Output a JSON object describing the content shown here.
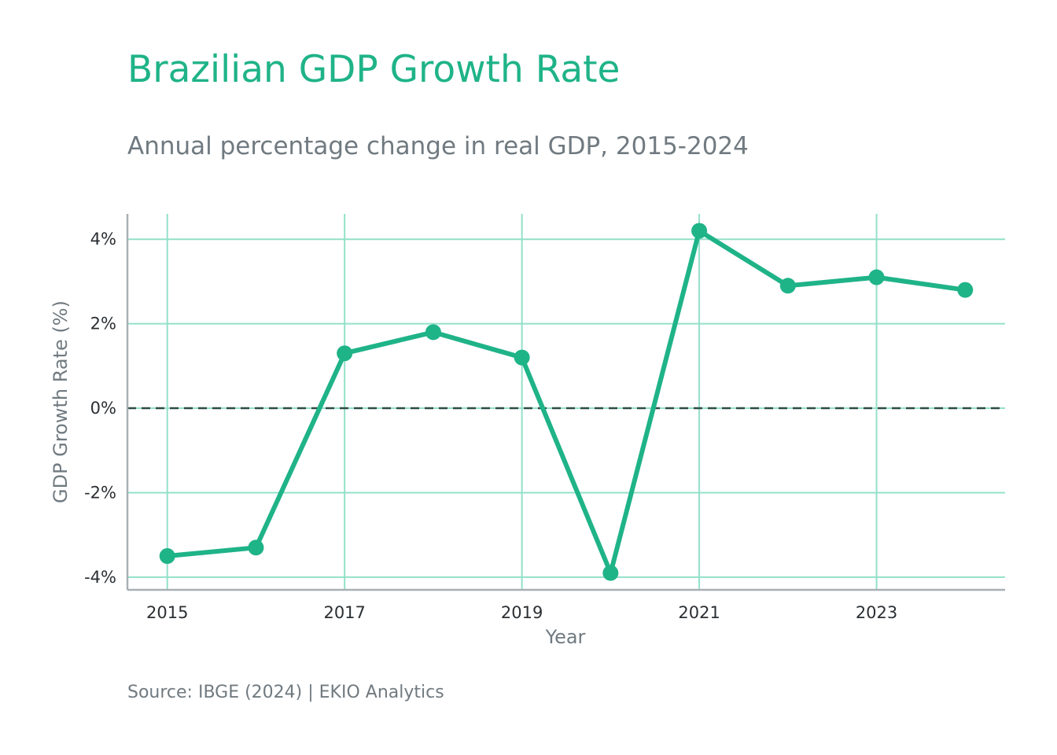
{
  "chart_data": {
    "type": "line",
    "title": "Brazilian GDP Growth Rate",
    "subtitle": "Annual percentage change in real GDP, 2015-2024",
    "caption": "Source: IBGE (2024) | EKIO Analytics",
    "xlabel": "Year",
    "ylabel": "GDP Growth Rate (%)",
    "x": [
      2015,
      2016,
      2017,
      2018,
      2019,
      2020,
      2021,
      2022,
      2023,
      2024
    ],
    "values": [
      -3.5,
      -3.3,
      1.3,
      1.8,
      1.2,
      -3.9,
      4.2,
      2.9,
      3.1,
      2.8
    ],
    "xlim": [
      2014.55,
      2024.45
    ],
    "ylim": [
      -4.3,
      4.6
    ],
    "xticks": [
      2015,
      2017,
      2019,
      2021,
      2023
    ],
    "xtick_labels": [
      "2015",
      "2017",
      "2019",
      "2021",
      "2023"
    ],
    "yticks": [
      -4,
      -2,
      0,
      2,
      4
    ],
    "ytick_labels": [
      "-4%",
      "-2%",
      "0%",
      "2%",
      "4%"
    ],
    "reference_line": 0,
    "grid": true,
    "legend": "none",
    "color": "#1fb388"
  }
}
